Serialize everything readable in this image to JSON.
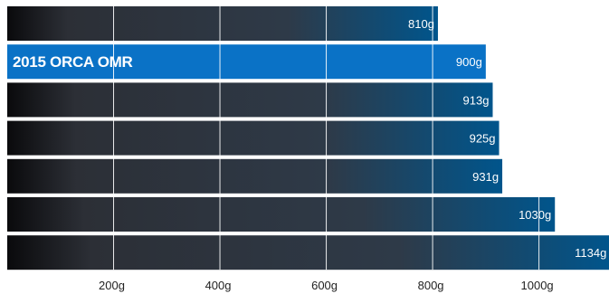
{
  "chart_data": {
    "type": "bar",
    "orientation": "horizontal",
    "xlim": [
      0,
      1134
    ],
    "grid": true,
    "x_ticks": [
      200,
      400,
      600,
      800,
      1000
    ],
    "x_tick_labels": [
      "200g",
      "400g",
      "600g",
      "800g",
      "1000g"
    ],
    "bars": [
      {
        "name": "",
        "value": 810,
        "label": "810g",
        "highlight": false
      },
      {
        "name": "2015 ORCA OMR",
        "value": 900,
        "label": "900g",
        "highlight": true
      },
      {
        "name": "",
        "value": 913,
        "label": "913g",
        "highlight": false
      },
      {
        "name": "",
        "value": 925,
        "label": "925g",
        "highlight": false
      },
      {
        "name": "",
        "value": 931,
        "label": "931g",
        "highlight": false
      },
      {
        "name": "",
        "value": 1030,
        "label": "1030g",
        "highlight": false
      },
      {
        "name": "",
        "value": 1134,
        "label": "1134g",
        "highlight": false
      }
    ],
    "colors": {
      "bar_start": "#0a0a0c",
      "bar_mid": "#2e3a48",
      "bar_end": "#00558c",
      "highlight": "#0a72c6",
      "grid": "#ffffff"
    }
  }
}
